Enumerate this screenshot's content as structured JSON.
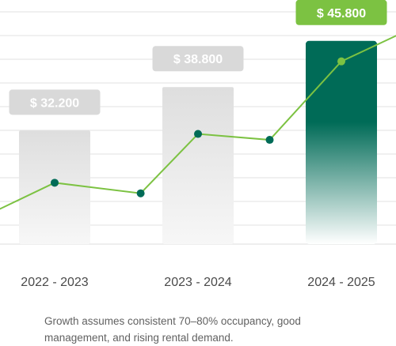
{
  "colors": {
    "accent_green": "#7cc242",
    "dark_green": "#006b57",
    "neutral_bar": "#dedede",
    "neutral_badge": "#d9d9d9"
  },
  "chart_data": {
    "type": "bar",
    "categories": [
      "2022 - 2023",
      "2023 - 2024",
      "2024 - 2025"
    ],
    "series": [
      {
        "values": [
          32200,
          38800,
          45800
        ]
      }
    ],
    "value_labels": [
      "$ 32.200",
      "$ 38.800",
      "$ 45.800"
    ],
    "highlighted_category": "2024 - 2025",
    "trend_line": {
      "x": [
        0,
        0.5,
        1.1,
        1.5,
        2.0,
        2.5,
        3.1,
        3.5
      ],
      "y": [
        19100,
        24300,
        22700,
        31700,
        30800,
        42700,
        48800,
        52000
      ],
      "markers": [
        false,
        true,
        true,
        true,
        true,
        true,
        false,
        false
      ]
    },
    "ylim": [
      15000,
      52000
    ],
    "grid": true,
    "xlabel": "",
    "ylabel": "",
    "title": ""
  },
  "footnote": "Growth assumes consistent 70–80% occupancy, good management, and rising rental demand."
}
